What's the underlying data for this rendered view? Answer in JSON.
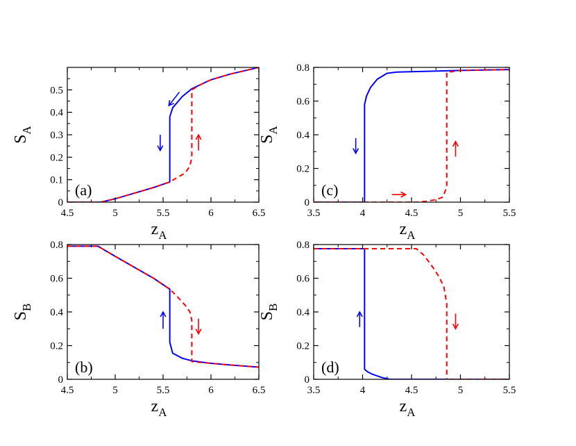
{
  "chart_data": [
    {
      "id": "a",
      "type": "line",
      "panel_label": "(a)",
      "xlabel": "z",
      "xlabel_sub": "A",
      "ylabel": "S",
      "ylabel_sub": "A",
      "xlim": [
        4.5,
        6.5
      ],
      "ylim": [
        0,
        0.6
      ],
      "xticks": [
        4.5,
        5,
        5.5,
        6,
        6.5
      ],
      "xtick_labels": [
        "4.5",
        "5",
        "5.5",
        "6",
        "6.5"
      ],
      "yticks": [
        0,
        0.1,
        0.2,
        0.3,
        0.4,
        0.5
      ],
      "ytick_labels": [
        "0",
        "0.1",
        "0.2",
        "0.3",
        "0.4",
        "0.5"
      ],
      "series": [
        {
          "color": "#0000ff",
          "style": "solid",
          "points": [
            [
              4.5,
              0
            ],
            [
              4.85,
              0
            ],
            [
              5.0,
              0.015
            ],
            [
              5.2,
              0.04
            ],
            [
              5.4,
              0.065
            ],
            [
              5.57,
              0.09
            ],
            [
              5.57,
              0.38
            ],
            [
              5.6,
              0.42
            ],
            [
              5.7,
              0.47
            ],
            [
              5.8,
              0.505
            ],
            [
              6.0,
              0.545
            ],
            [
              6.2,
              0.57
            ],
            [
              6.5,
              0.6
            ]
          ]
        },
        {
          "color": "#ff0000",
          "style": "dashed",
          "points": [
            [
              4.5,
              0
            ],
            [
              4.85,
              0
            ],
            [
              5.0,
              0.015
            ],
            [
              5.2,
              0.04
            ],
            [
              5.4,
              0.065
            ],
            [
              5.57,
              0.09
            ],
            [
              5.65,
              0.11
            ],
            [
              5.73,
              0.13
            ],
            [
              5.78,
              0.16
            ],
            [
              5.8,
              0.2
            ],
            [
              5.8,
              0.5
            ],
            [
              5.9,
              0.525
            ],
            [
              6.0,
              0.545
            ],
            [
              6.2,
              0.57
            ],
            [
              6.5,
              0.6
            ]
          ]
        }
      ],
      "arrows": [
        {
          "color": "#0000ff",
          "from": [
            5.67,
            0.49
          ],
          "to": [
            5.56,
            0.43
          ]
        },
        {
          "color": "#0000ff",
          "from": [
            5.47,
            0.3
          ],
          "to": [
            5.47,
            0.23
          ]
        },
        {
          "color": "#ff0000",
          "from": [
            5.87,
            0.23
          ],
          "to": [
            5.87,
            0.3
          ]
        }
      ]
    },
    {
      "id": "c",
      "type": "line",
      "panel_label": "(c)",
      "xlabel": "z",
      "xlabel_sub": "A",
      "ylabel": "S",
      "ylabel_sub": "A",
      "xlim": [
        3.5,
        5.5
      ],
      "ylim": [
        0,
        0.8
      ],
      "xticks": [
        3.5,
        4,
        4.5,
        5,
        5.5
      ],
      "xtick_labels": [
        "3.5",
        "4",
        "4.5",
        "5",
        "5.5"
      ],
      "yticks": [
        0,
        0.2,
        0.4,
        0.6,
        0.8
      ],
      "ytick_labels": [
        "0",
        "0.2",
        "0.4",
        "0.6",
        "0.8"
      ],
      "series": [
        {
          "color": "#0000ff",
          "style": "solid",
          "points": [
            [
              3.5,
              0
            ],
            [
              4.02,
              0
            ],
            [
              4.02,
              0.58
            ],
            [
              4.04,
              0.63
            ],
            [
              4.08,
              0.68
            ],
            [
              4.15,
              0.73
            ],
            [
              4.25,
              0.765
            ],
            [
              4.35,
              0.772
            ],
            [
              5.0,
              0.782
            ],
            [
              5.5,
              0.787
            ]
          ]
        },
        {
          "color": "#ff0000",
          "style": "dashed",
          "points": [
            [
              3.5,
              0
            ],
            [
              4.55,
              0
            ],
            [
              4.65,
              0.005
            ],
            [
              4.75,
              0.015
            ],
            [
              4.82,
              0.03
            ],
            [
              4.86,
              0.09
            ],
            [
              4.86,
              0.77
            ],
            [
              5.0,
              0.782
            ],
            [
              5.5,
              0.787
            ]
          ]
        }
      ],
      "arrows": [
        {
          "color": "#0000ff",
          "from": [
            3.93,
            0.38
          ],
          "to": [
            3.93,
            0.29
          ]
        },
        {
          "color": "#ff0000",
          "from": [
            4.3,
            0.045
          ],
          "to": [
            4.44,
            0.045
          ]
        },
        {
          "color": "#ff0000",
          "from": [
            4.95,
            0.27
          ],
          "to": [
            4.95,
            0.36
          ]
        }
      ]
    },
    {
      "id": "b",
      "type": "line",
      "panel_label": "(b)",
      "xlabel": "z",
      "xlabel_sub": "A",
      "ylabel": "S",
      "ylabel_sub": "B",
      "xlim": [
        4.5,
        6.5
      ],
      "ylim": [
        0,
        0.8
      ],
      "xticks": [
        4.5,
        5,
        5.5,
        6,
        6.5
      ],
      "xtick_labels": [
        "4.5",
        "5",
        "5.5",
        "6",
        "6.5"
      ],
      "yticks": [
        0,
        0.2,
        0.4,
        0.6,
        0.8
      ],
      "ytick_labels": [
        "0",
        "0.2",
        "0.4",
        "0.6",
        "0.8"
      ],
      "series": [
        {
          "color": "#0000ff",
          "style": "solid",
          "points": [
            [
              4.5,
              0.79
            ],
            [
              4.82,
              0.79
            ],
            [
              5.0,
              0.73
            ],
            [
              5.2,
              0.665
            ],
            [
              5.4,
              0.6
            ],
            [
              5.57,
              0.535
            ],
            [
              5.57,
              0.22
            ],
            [
              5.6,
              0.155
            ],
            [
              5.7,
              0.125
            ],
            [
              5.8,
              0.11
            ],
            [
              6.0,
              0.095
            ],
            [
              6.2,
              0.085
            ],
            [
              6.5,
              0.072
            ]
          ]
        },
        {
          "color": "#ff0000",
          "style": "dashed",
          "points": [
            [
              4.5,
              0.79
            ],
            [
              4.82,
              0.79
            ],
            [
              5.0,
              0.73
            ],
            [
              5.2,
              0.665
            ],
            [
              5.4,
              0.6
            ],
            [
              5.57,
              0.535
            ],
            [
              5.65,
              0.49
            ],
            [
              5.73,
              0.44
            ],
            [
              5.78,
              0.4
            ],
            [
              5.8,
              0.35
            ],
            [
              5.8,
              0.105
            ],
            [
              6.0,
              0.095
            ],
            [
              6.2,
              0.085
            ],
            [
              6.5,
              0.072
            ]
          ]
        }
      ],
      "arrows": [
        {
          "color": "#0000ff",
          "from": [
            5.5,
            0.3
          ],
          "to": [
            5.5,
            0.4
          ]
        },
        {
          "color": "#ff0000",
          "from": [
            5.87,
            0.36
          ],
          "to": [
            5.87,
            0.27
          ]
        }
      ]
    },
    {
      "id": "d",
      "type": "line",
      "panel_label": "(d)",
      "xlabel": "z",
      "xlabel_sub": "A",
      "ylabel": "S",
      "ylabel_sub": "B",
      "xlim": [
        3.5,
        5.5
      ],
      "ylim": [
        0,
        0.8
      ],
      "xticks": [
        3.5,
        4,
        4.5,
        5,
        5.5
      ],
      "xtick_labels": [
        "3.5",
        "4",
        "4.5",
        "5",
        "5.5"
      ],
      "yticks": [
        0,
        0.2,
        0.4,
        0.6,
        0.8
      ],
      "ytick_labels": [
        "0",
        "0.2",
        "0.4",
        "0.6",
        "0.8"
      ],
      "series": [
        {
          "color": "#0000ff",
          "style": "solid",
          "points": [
            [
              3.5,
              0.775
            ],
            [
              4.02,
              0.775
            ],
            [
              4.02,
              0.06
            ],
            [
              4.05,
              0.045
            ],
            [
              4.1,
              0.03
            ],
            [
              4.2,
              0.01
            ],
            [
              4.28,
              0
            ],
            [
              5.5,
              0
            ]
          ]
        },
        {
          "color": "#ff0000",
          "style": "dashed",
          "points": [
            [
              3.5,
              0.775
            ],
            [
              4.55,
              0.775
            ],
            [
              4.62,
              0.74
            ],
            [
              4.7,
              0.68
            ],
            [
              4.78,
              0.61
            ],
            [
              4.83,
              0.55
            ],
            [
              4.86,
              0.45
            ],
            [
              4.86,
              0
            ],
            [
              5.5,
              0
            ]
          ]
        }
      ],
      "arrows": [
        {
          "color": "#0000ff",
          "from": [
            3.97,
            0.31
          ],
          "to": [
            3.97,
            0.4
          ]
        },
        {
          "color": "#ff0000",
          "from": [
            4.95,
            0.39
          ],
          "to": [
            4.95,
            0.3
          ]
        }
      ]
    }
  ]
}
